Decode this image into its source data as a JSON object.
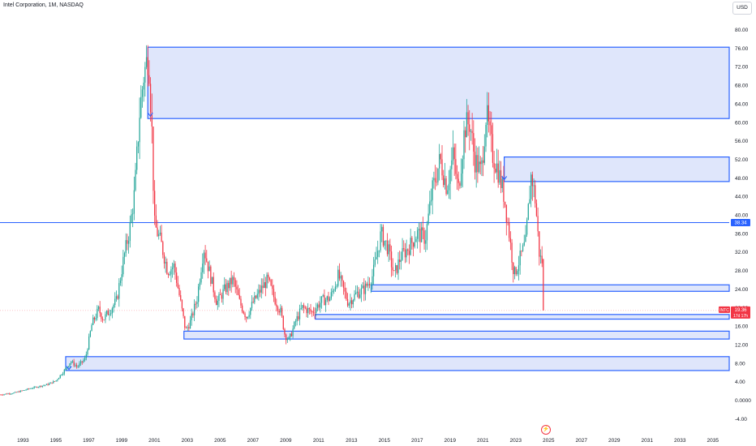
{
  "header": {
    "title": "Intel Corporation, 1M, NASDAQ",
    "currency": "USD"
  },
  "colors": {
    "up": "#26a69a",
    "down": "#f23645",
    "zone_fill": "#dbe3fb",
    "zone_line": "#2962ff",
    "price_badge": "#f23645",
    "level_badge": "#2962ff"
  },
  "icons": {
    "alert": "lightning-bolt-icon"
  },
  "chart_data": {
    "type": "candlestick",
    "title": "Intel Corporation, 1M, NASDAQ",
    "y_ticks": [
      "80.00",
      "76.00",
      "72.00",
      "68.00",
      "64.00",
      "60.00",
      "56.00",
      "52.00",
      "48.00",
      "44.00",
      "40.00",
      "36.00",
      "32.00",
      "28.00",
      "24.00",
      "20.00",
      "16.00",
      "12.00",
      "8.00",
      "4.00",
      "0.0000",
      "-4.00"
    ],
    "x_ticks": [
      "1993",
      "1995",
      "1997",
      "1999",
      "2001",
      "2003",
      "2005",
      "2007",
      "2009",
      "2011",
      "2013",
      "2015",
      "2017",
      "2019",
      "2021",
      "2023",
      "2025",
      "2027",
      "2029",
      "2031",
      "2033",
      "2035"
    ],
    "ylim": [
      -5,
      82
    ],
    "xlim": [
      1991.6,
      2036.0
    ],
    "grid": false,
    "last_price": {
      "label": "INTC",
      "value": "19.36",
      "countdown": "17d 17h"
    },
    "level_label": "38.34",
    "horizontal_line": 38.34,
    "price_path": [
      [
        1991.6,
        1.2
      ],
      [
        1992.5,
        1.6
      ],
      [
        1993.5,
        2.6
      ],
      [
        1994.5,
        3.4
      ],
      [
        1995.0,
        4.2
      ],
      [
        1995.6,
        6.8
      ],
      [
        1995.9,
        8.4
      ],
      [
        1996.3,
        7.2
      ],
      [
        1996.8,
        9.0
      ],
      [
        1997.2,
        16.5
      ],
      [
        1997.6,
        19.5
      ],
      [
        1997.9,
        17.5
      ],
      [
        1998.3,
        19.5
      ],
      [
        1998.7,
        21.5
      ],
      [
        1999.1,
        30.0
      ],
      [
        1999.5,
        37.0
      ],
      [
        1999.8,
        45.0
      ],
      [
        2000.1,
        62.0
      ],
      [
        2000.35,
        70.0
      ],
      [
        2000.65,
        75.0
      ],
      [
        2000.85,
        58.0
      ],
      [
        2001.0,
        38.0
      ],
      [
        2001.4,
        34.0
      ],
      [
        2001.8,
        28.0
      ],
      [
        2002.2,
        29.0
      ],
      [
        2002.6,
        21.0
      ],
      [
        2002.9,
        15.0
      ],
      [
        2003.2,
        17.0
      ],
      [
        2003.6,
        22.0
      ],
      [
        2004.0,
        33.0
      ],
      [
        2004.4,
        27.0
      ],
      [
        2004.8,
        21.0
      ],
      [
        2005.3,
        24.0
      ],
      [
        2005.8,
        26.0
      ],
      [
        2006.2,
        21.0
      ],
      [
        2006.6,
        18.0
      ],
      [
        2007.0,
        21.0
      ],
      [
        2007.5,
        24.0
      ],
      [
        2007.9,
        26.0
      ],
      [
        2008.3,
        22.0
      ],
      [
        2008.7,
        19.0
      ],
      [
        2008.95,
        14.0
      ],
      [
        2009.2,
        13.0
      ],
      [
        2009.6,
        17.0
      ],
      [
        2010.0,
        20.0
      ],
      [
        2010.6,
        19.0
      ],
      [
        2011.2,
        21.5
      ],
      [
        2011.7,
        22.0
      ],
      [
        2012.2,
        27.0
      ],
      [
        2012.8,
        21.0
      ],
      [
        2013.3,
        23.0
      ],
      [
        2013.8,
        24.0
      ],
      [
        2014.3,
        27.0
      ],
      [
        2014.8,
        36.0
      ],
      [
        2015.2,
        33.0
      ],
      [
        2015.6,
        27.0
      ],
      [
        2016.0,
        31.0
      ],
      [
        2016.5,
        33.0
      ],
      [
        2017.0,
        36.0
      ],
      [
        2017.5,
        35.0
      ],
      [
        2017.9,
        45.0
      ],
      [
        2018.4,
        52.0
      ],
      [
        2018.8,
        46.0
      ],
      [
        2019.2,
        53.0
      ],
      [
        2019.5,
        45.0
      ],
      [
        2019.9,
        59.0
      ],
      [
        2020.2,
        60.0
      ],
      [
        2020.5,
        52.0
      ],
      [
        2020.9,
        49.0
      ],
      [
        2021.2,
        62.0
      ],
      [
        2021.6,
        53.0
      ],
      [
        2021.9,
        50.0
      ],
      [
        2022.3,
        44.0
      ],
      [
        2022.6,
        36.0
      ],
      [
        2022.9,
        27.0
      ],
      [
        2023.2,
        30.0
      ],
      [
        2023.6,
        34.0
      ],
      [
        2023.95,
        49.0
      ],
      [
        2024.2,
        43.0
      ],
      [
        2024.45,
        31.0
      ],
      [
        2024.6,
        30.0
      ],
      [
        2024.68,
        20.0
      ]
    ],
    "zones": [
      {
        "from": 2000.6,
        "to": 2036.0,
        "low": 60.8,
        "high": 76.2
      },
      {
        "from": 2022.3,
        "to": 2036.0,
        "low": 47.2,
        "high": 52.5
      },
      {
        "from": 2014.2,
        "to": 2036.0,
        "low": 23.5,
        "high": 24.9
      },
      {
        "from": 2010.8,
        "to": 2036.0,
        "low": 17.5,
        "high": 18.5
      },
      {
        "from": 2002.8,
        "to": 2036.0,
        "low": 13.2,
        "high": 14.9
      },
      {
        "from": 1995.6,
        "to": 2036.0,
        "low": 6.4,
        "high": 9.4
      }
    ],
    "markers": [
      {
        "x": 2000.75,
        "y": 61.5
      },
      {
        "x": 2022.3,
        "y": 47.8
      },
      {
        "x": 1995.8,
        "y": 6.8
      }
    ]
  }
}
